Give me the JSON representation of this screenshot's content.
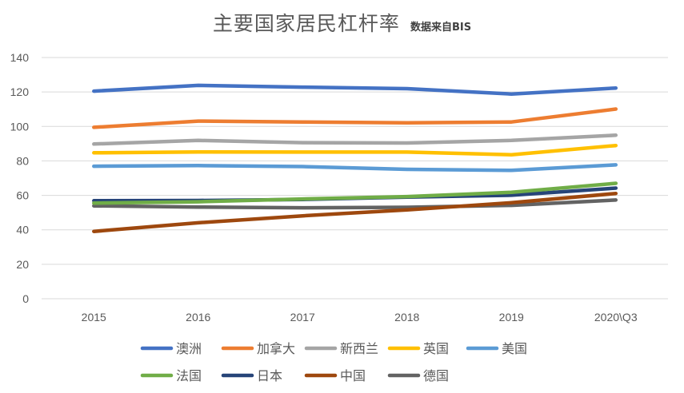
{
  "chart_data": {
    "type": "line",
    "title": "主要国家居民杠杆率",
    "subtitle": "数据来自BIS",
    "categories": [
      "2015",
      "2016",
      "2017",
      "2018",
      "2019",
      "2020\\Q3"
    ],
    "ylim": [
      0,
      140
    ],
    "yticks": [
      "0",
      "20",
      "40",
      "60",
      "80",
      "100",
      "120",
      "140"
    ],
    "grid": true,
    "legend_position": "bottom",
    "series": [
      {
        "name": "澳洲",
        "color": "#4472C4",
        "values": [
          120.5,
          123.8,
          122.8,
          121.9,
          118.8,
          122.3
        ]
      },
      {
        "name": "加拿大",
        "color": "#ED7D31",
        "values": [
          99.5,
          103.1,
          102.6,
          102.1,
          102.6,
          110.1
        ]
      },
      {
        "name": "新西兰",
        "color": "#A5A5A5",
        "values": [
          89.8,
          91.9,
          90.6,
          90.4,
          91.9,
          94.9
        ]
      },
      {
        "name": "英国",
        "color": "#FFC000",
        "values": [
          84.7,
          85.2,
          85.1,
          85.1,
          83.6,
          88.9
        ]
      },
      {
        "name": "美国",
        "color": "#5B9BD5",
        "values": [
          76.9,
          77.3,
          76.7,
          75.1,
          74.5,
          77.7
        ]
      },
      {
        "name": "法国",
        "color": "#70AD47",
        "values": [
          55.5,
          56.3,
          57.9,
          59.3,
          61.8,
          67.0
        ]
      },
      {
        "name": "日本",
        "color": "#264478",
        "values": [
          56.9,
          57.0,
          57.6,
          59.0,
          60.1,
          64.2
        ]
      },
      {
        "name": "中国",
        "color": "#9E480E",
        "values": [
          39.1,
          44.1,
          48.1,
          51.6,
          55.7,
          61.1
        ]
      },
      {
        "name": "德国",
        "color": "#636363",
        "values": [
          53.9,
          53.2,
          52.8,
          53.1,
          54.2,
          57.3
        ]
      }
    ]
  }
}
